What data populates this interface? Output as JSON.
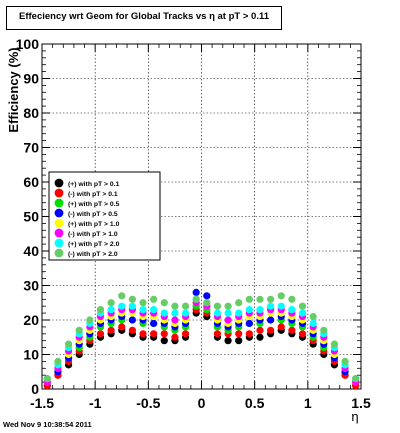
{
  "title": "Effeciency wrt Geom for Global Tracks vs    η at pT > 0.11",
  "footer": "Wed Nov  9 10:38:54 2011",
  "chart_data": {
    "type": "scatter",
    "xlabel": "η",
    "ylabel": "Efficiency (%)",
    "xlim": [
      -1.5,
      1.5
    ],
    "ylim": [
      0,
      100
    ],
    "x_ticks": [
      "-1.5",
      "-1",
      "-0.5",
      "0",
      "0.5",
      "1",
      "1.5"
    ],
    "y_ticks": [
      "0",
      "10",
      "20",
      "30",
      "40",
      "50",
      "60",
      "70",
      "80",
      "90",
      "100"
    ],
    "grid": true,
    "legend_position": "middle-left",
    "series": [
      {
        "name": "(+) with pT > 0.1",
        "color": "#000000",
        "x": [
          -1.45,
          -1.35,
          -1.25,
          -1.15,
          -1.05,
          -0.95,
          -0.85,
          -0.75,
          -0.65,
          -0.55,
          -0.45,
          -0.35,
          -0.25,
          -0.15,
          -0.05,
          0.05,
          0.15,
          0.25,
          0.35,
          0.45,
          0.55,
          0.65,
          0.75,
          0.85,
          0.95,
          1.05,
          1.15,
          1.25,
          1.35,
          1.45
        ],
        "y": [
          1,
          4,
          7,
          10,
          13,
          15,
          16,
          17,
          16,
          15,
          15,
          14,
          14,
          15,
          22,
          21,
          15,
          14,
          14,
          15,
          15,
          16,
          17,
          16,
          15,
          13,
          10,
          7,
          4,
          1
        ]
      },
      {
        "name": "(-) with pT > 0.1",
        "color": "#ff0000",
        "x": [
          -1.45,
          -1.35,
          -1.25,
          -1.15,
          -1.05,
          -0.95,
          -0.85,
          -0.75,
          -0.65,
          -0.55,
          -0.45,
          -0.35,
          -0.25,
          -0.15,
          -0.05,
          0.05,
          0.15,
          0.25,
          0.35,
          0.45,
          0.55,
          0.65,
          0.75,
          0.85,
          0.95,
          1.05,
          1.15,
          1.25,
          1.35,
          1.45
        ],
        "y": [
          1,
          4,
          8,
          11,
          14,
          16,
          17,
          18,
          17,
          16,
          16,
          16,
          15,
          16,
          23,
          22,
          16,
          16,
          16,
          16,
          17,
          17,
          18,
          17,
          16,
          14,
          11,
          8,
          4,
          1
        ]
      },
      {
        "name": "(+) with pT > 0.5",
        "color": "#00dd00",
        "x": [
          -1.45,
          -1.35,
          -1.25,
          -1.15,
          -1.05,
          -0.95,
          -0.85,
          -0.75,
          -0.65,
          -0.55,
          -0.45,
          -0.35,
          -0.25,
          -0.15,
          -0.05,
          0.05,
          0.15,
          0.25,
          0.35,
          0.45,
          0.55,
          0.65,
          0.75,
          0.85,
          0.95,
          1.05,
          1.15,
          1.25,
          1.35,
          1.45
        ],
        "y": [
          2,
          5,
          9,
          12,
          15,
          18,
          19,
          20,
          20,
          19,
          19,
          18,
          17,
          18,
          24,
          23,
          18,
          17,
          18,
          19,
          19,
          20,
          20,
          19,
          18,
          15,
          12,
          9,
          5,
          2
        ]
      },
      {
        "name": "(-) with pT > 0.5",
        "color": "#0000ff",
        "x": [
          -1.45,
          -1.35,
          -1.25,
          -1.15,
          -1.05,
          -0.95,
          -0.85,
          -0.75,
          -0.65,
          -0.55,
          -0.45,
          -0.35,
          -0.25,
          -0.15,
          -0.05,
          0.05,
          0.15,
          0.25,
          0.35,
          0.45,
          0.55,
          0.65,
          0.75,
          0.85,
          0.95,
          1.05,
          1.15,
          1.25,
          1.35,
          1.45
        ],
        "y": [
          2,
          5,
          9,
          13,
          16,
          19,
          20,
          21,
          20,
          20,
          19,
          19,
          18,
          19,
          28,
          27,
          19,
          18,
          19,
          19,
          20,
          20,
          21,
          20,
          19,
          16,
          13,
          9,
          5,
          2
        ]
      },
      {
        "name": "(+) with pT > 1.0",
        "color": "#ffff00",
        "x": [
          -1.45,
          -1.35,
          -1.25,
          -1.15,
          -1.05,
          -0.95,
          -0.85,
          -0.75,
          -0.65,
          -0.55,
          -0.45,
          -0.35,
          -0.25,
          -0.15,
          -0.05,
          0.05,
          0.15,
          0.25,
          0.35,
          0.45,
          0.55,
          0.65,
          0.75,
          0.85,
          0.95,
          1.05,
          1.15,
          1.25,
          1.35,
          1.45
        ],
        "y": [
          2,
          6,
          10,
          14,
          17,
          20,
          21,
          22,
          22,
          21,
          21,
          20,
          19,
          20,
          25,
          24,
          20,
          19,
          20,
          21,
          21,
          22,
          22,
          21,
          20,
          17,
          14,
          10,
          6,
          2
        ]
      },
      {
        "name": "(-) with pT > 1.0",
        "color": "#ff00ff",
        "x": [
          -1.45,
          -1.35,
          -1.25,
          -1.15,
          -1.05,
          -0.95,
          -0.85,
          -0.75,
          -0.65,
          -0.55,
          -0.45,
          -0.35,
          -0.25,
          -0.15,
          -0.05,
          0.05,
          0.15,
          0.25,
          0.35,
          0.45,
          0.55,
          0.65,
          0.75,
          0.85,
          0.95,
          1.05,
          1.15,
          1.25,
          1.35,
          1.45
        ],
        "y": [
          2,
          6,
          11,
          15,
          18,
          21,
          22,
          23,
          23,
          22,
          22,
          21,
          20,
          21,
          25,
          24,
          21,
          20,
          21,
          22,
          22,
          23,
          23,
          22,
          21,
          18,
          15,
          11,
          6,
          2
        ]
      },
      {
        "name": "(+) with pT > 2.0",
        "color": "#00ffff",
        "x": [
          -1.45,
          -1.35,
          -1.25,
          -1.15,
          -1.05,
          -0.95,
          -0.85,
          -0.75,
          -0.65,
          -0.55,
          -0.45,
          -0.35,
          -0.25,
          -0.15,
          -0.05,
          0.05,
          0.15,
          0.25,
          0.35,
          0.45,
          0.55,
          0.65,
          0.75,
          0.85,
          0.95,
          1.05,
          1.15,
          1.25,
          1.35,
          1.45
        ],
        "y": [
          3,
          7,
          12,
          16,
          19,
          22,
          23,
          24,
          24,
          23,
          23,
          22,
          22,
          22,
          26,
          25,
          22,
          22,
          22,
          23,
          23,
          24,
          24,
          23,
          22,
          19,
          16,
          12,
          7,
          3
        ]
      },
      {
        "name": "(-) with pT > 2.0",
        "color": "#66cc66",
        "x": [
          -1.45,
          -1.35,
          -1.25,
          -1.15,
          -1.05,
          -0.95,
          -0.85,
          -0.75,
          -0.65,
          -0.55,
          -0.45,
          -0.35,
          -0.25,
          -0.15,
          -0.05,
          0.05,
          0.15,
          0.25,
          0.35,
          0.45,
          0.55,
          0.65,
          0.75,
          0.85,
          0.95,
          1.05,
          1.15,
          1.25,
          1.35,
          1.45
        ],
        "y": [
          3,
          8,
          13,
          17,
          20,
          23,
          25,
          27,
          26,
          25,
          26,
          25,
          24,
          24,
          26,
          25,
          24,
          24,
          25,
          26,
          26,
          26,
          27,
          26,
          24,
          21,
          17,
          13,
          8,
          3
        ]
      }
    ]
  }
}
